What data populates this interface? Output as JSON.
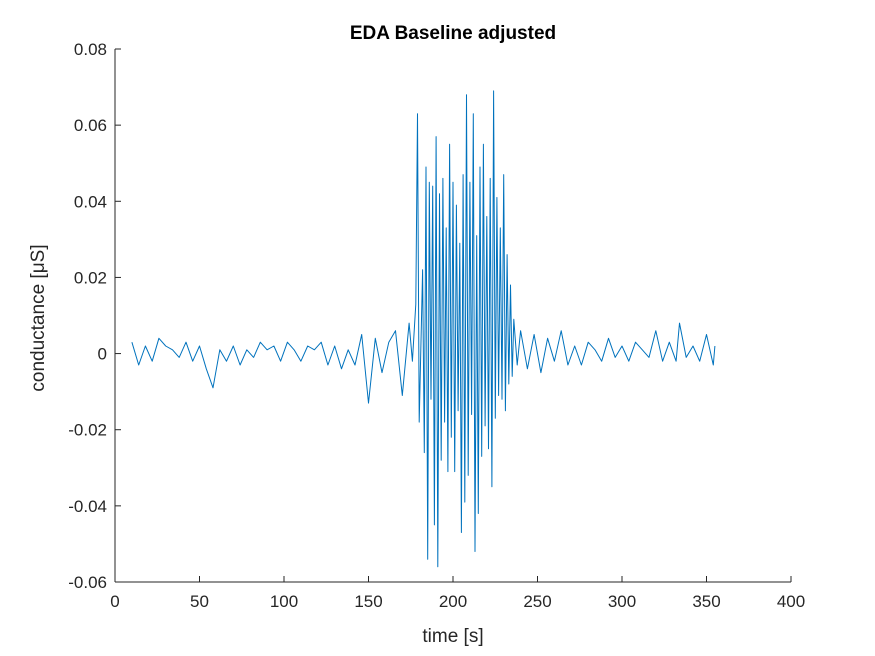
{
  "chart_data": {
    "type": "line",
    "title": "EDA Baseline adjusted",
    "xlabel": "time [s]",
    "ylabel": "conductance [μS]",
    "xlim": [
      0,
      400
    ],
    "ylim": [
      -0.06,
      0.08
    ],
    "xticks": [
      0,
      50,
      100,
      150,
      200,
      250,
      300,
      350,
      400
    ],
    "yticks": [
      -0.06,
      -0.04,
      -0.02,
      0,
      0.02,
      0.04,
      0.06,
      0.08
    ],
    "xtick_labels": [
      "0",
      "50",
      "100",
      "150",
      "200",
      "250",
      "300",
      "350",
      "400"
    ],
    "ytick_labels": [
      "-0.06",
      "-0.04",
      "-0.02",
      "0",
      "0.02",
      "0.04",
      "0.06",
      "0.08"
    ],
    "grid": false,
    "series": [
      {
        "color": "#0072BD",
        "x": [
          10,
          14,
          18,
          22,
          26,
          30,
          34,
          38,
          42,
          46,
          50,
          54,
          58,
          62,
          66,
          70,
          74,
          78,
          82,
          86,
          90,
          94,
          98,
          102,
          106,
          110,
          114,
          118,
          122,
          126,
          130,
          134,
          138,
          142,
          146,
          150,
          154,
          158,
          162,
          166,
          170,
          174,
          176,
          178,
          179,
          180,
          182,
          183,
          184,
          185,
          186,
          187,
          188,
          189,
          190,
          191,
          192,
          193,
          194,
          195,
          196,
          197,
          198,
          199,
          200,
          201,
          202,
          203,
          204,
          205,
          206,
          207,
          208,
          209,
          210,
          211,
          212,
          213,
          214,
          215,
          216,
          217,
          218,
          219,
          220,
          221,
          222,
          223,
          224,
          225,
          226,
          227,
          228,
          229,
          230,
          231,
          232,
          233,
          234,
          235,
          236,
          238,
          240,
          244,
          248,
          252,
          256,
          260,
          264,
          268,
          272,
          276,
          280,
          284,
          288,
          292,
          296,
          300,
          304,
          308,
          312,
          316,
          320,
          324,
          328,
          332,
          334,
          338,
          342,
          346,
          350,
          354,
          355
        ],
        "y": [
          0.003,
          -0.003,
          0.002,
          -0.002,
          0.004,
          0.002,
          0.001,
          -0.001,
          0.003,
          -0.002,
          0.002,
          -0.004,
          -0.009,
          0.001,
          -0.002,
          0.002,
          -0.003,
          0.001,
          -0.001,
          0.003,
          0.001,
          0.002,
          -0.002,
          0.003,
          0.001,
          -0.002,
          0.002,
          0.001,
          0.003,
          -0.003,
          0.002,
          -0.004,
          0.001,
          -0.003,
          0.005,
          -0.013,
          0.004,
          -0.005,
          0.003,
          0.006,
          -0.011,
          0.008,
          -0.002,
          0.013,
          0.063,
          -0.018,
          0.022,
          -0.026,
          0.049,
          -0.054,
          0.045,
          -0.012,
          0.044,
          -0.045,
          0.057,
          -0.056,
          0.042,
          -0.028,
          0.046,
          -0.018,
          0.033,
          -0.031,
          0.055,
          -0.022,
          0.045,
          -0.031,
          0.039,
          -0.015,
          0.029,
          -0.047,
          0.047,
          -0.039,
          0.068,
          -0.032,
          0.045,
          -0.016,
          0.063,
          -0.052,
          0.031,
          -0.042,
          0.049,
          -0.027,
          0.055,
          -0.019,
          0.036,
          -0.025,
          0.046,
          -0.035,
          0.069,
          -0.017,
          0.041,
          -0.011,
          0.033,
          -0.012,
          0.047,
          -0.015,
          0.026,
          -0.008,
          0.018,
          -0.006,
          0.009,
          -0.003,
          0.006,
          -0.004,
          0.005,
          -0.005,
          0.004,
          -0.002,
          0.006,
          -0.003,
          0.002,
          -0.003,
          0.003,
          0.001,
          -0.002,
          0.004,
          -0.001,
          0.002,
          -0.002,
          0.003,
          0.001,
          -0.001,
          0.006,
          -0.002,
          0.003,
          -0.002,
          0.008,
          -0.001,
          0.002,
          -0.002,
          0.005,
          -0.003,
          0.002
        ]
      }
    ]
  }
}
